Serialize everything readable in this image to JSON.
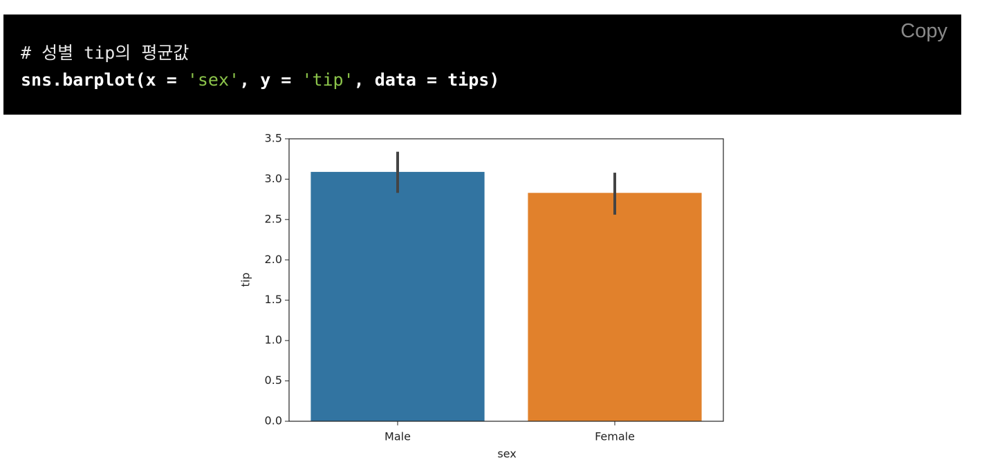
{
  "code_block": {
    "comment": "# 성별 tip의 평균값",
    "code_tokens": [
      "sns.barplot(x = ",
      "'sex'",
      ", y = ",
      "'tip'",
      ", data = tips)"
    ],
    "copy_button": "Copy"
  },
  "chart_data": {
    "type": "bar",
    "x_label": "sex",
    "y_label": "tip",
    "categories": [
      "Male",
      "Female"
    ],
    "values": [
      3.09,
      2.83
    ],
    "ci_low": [
      2.83,
      2.56
    ],
    "ci_high": [
      3.34,
      3.08
    ],
    "colors": [
      "#3274a1",
      "#e1812c"
    ],
    "error_color": "#444444",
    "ylim": [
      0,
      3.5
    ],
    "yticks": [
      {
        "value": 0,
        "label": "0.0"
      },
      0.5,
      {
        "value": 1,
        "label": "1.0"
      },
      1.5,
      {
        "value": 2,
        "label": "2.0"
      },
      2.5,
      {
        "value": 3,
        "label": "3.0"
      },
      3.5
    ],
    "grid": false
  }
}
